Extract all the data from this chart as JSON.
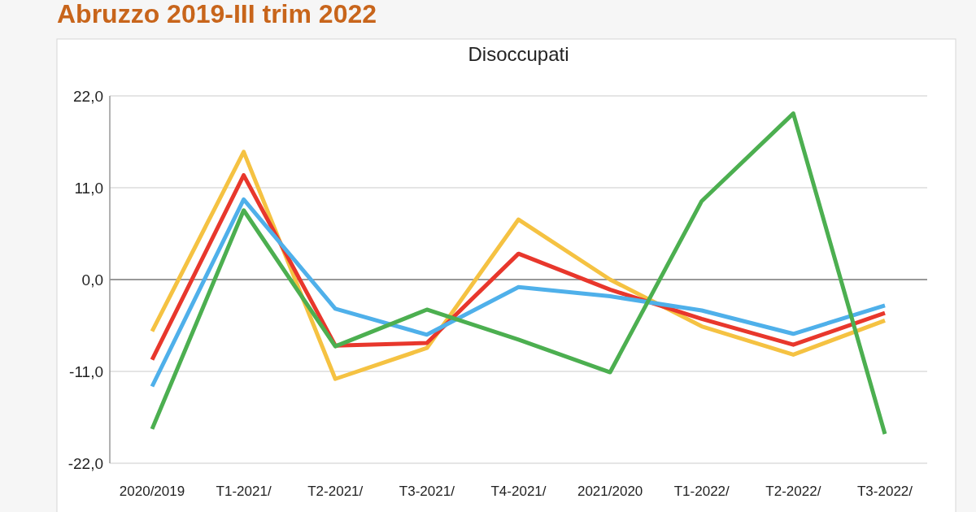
{
  "chart_data": {
    "type": "line",
    "title": "Abruzzo 2019-III trim 2022",
    "subtitle": "Disoccupati",
    "categories": [
      "2020/2019",
      "T1-2021/",
      "T2-2021/",
      "T3-2021/",
      "T4-2021/",
      "2021/2020",
      "T1-2022/",
      "T2-2022/",
      "T3-2022/"
    ],
    "series": [
      {
        "color": "#f5c242",
        "values": [
          -6.2,
          15.3,
          -11.9,
          -8.2,
          7.2,
          0,
          -5.6,
          -9.0,
          -4.9
        ]
      },
      {
        "color": "#e8372c",
        "values": [
          -9.6,
          12.5,
          -7.9,
          -7.6,
          3.1,
          -1.2,
          -4.7,
          -7.8,
          -4.0
        ]
      },
      {
        "color": "#4fb0ea",
        "values": [
          -12.8,
          9.6,
          -3.5,
          -6.6,
          -0.9,
          -2.0,
          -3.7,
          -6.5,
          -3.1
        ]
      },
      {
        "color": "#4caf50",
        "values": [
          -17.9,
          8.3,
          -8.0,
          -3.6,
          -7.2,
          -11.1,
          9.4,
          19.9,
          -18.5
        ]
      }
    ],
    "ylim": [
      -22,
      22
    ],
    "yticks": [
      {
        "value": 22,
        "label": "22,0"
      },
      {
        "value": 11,
        "label": "11,0"
      },
      {
        "value": 0,
        "label": "0,0"
      },
      {
        "value": -11,
        "label": "-11,0"
      },
      {
        "value": -22,
        "label": "-22,0"
      }
    ],
    "grid": "y",
    "line_style": "solid"
  }
}
